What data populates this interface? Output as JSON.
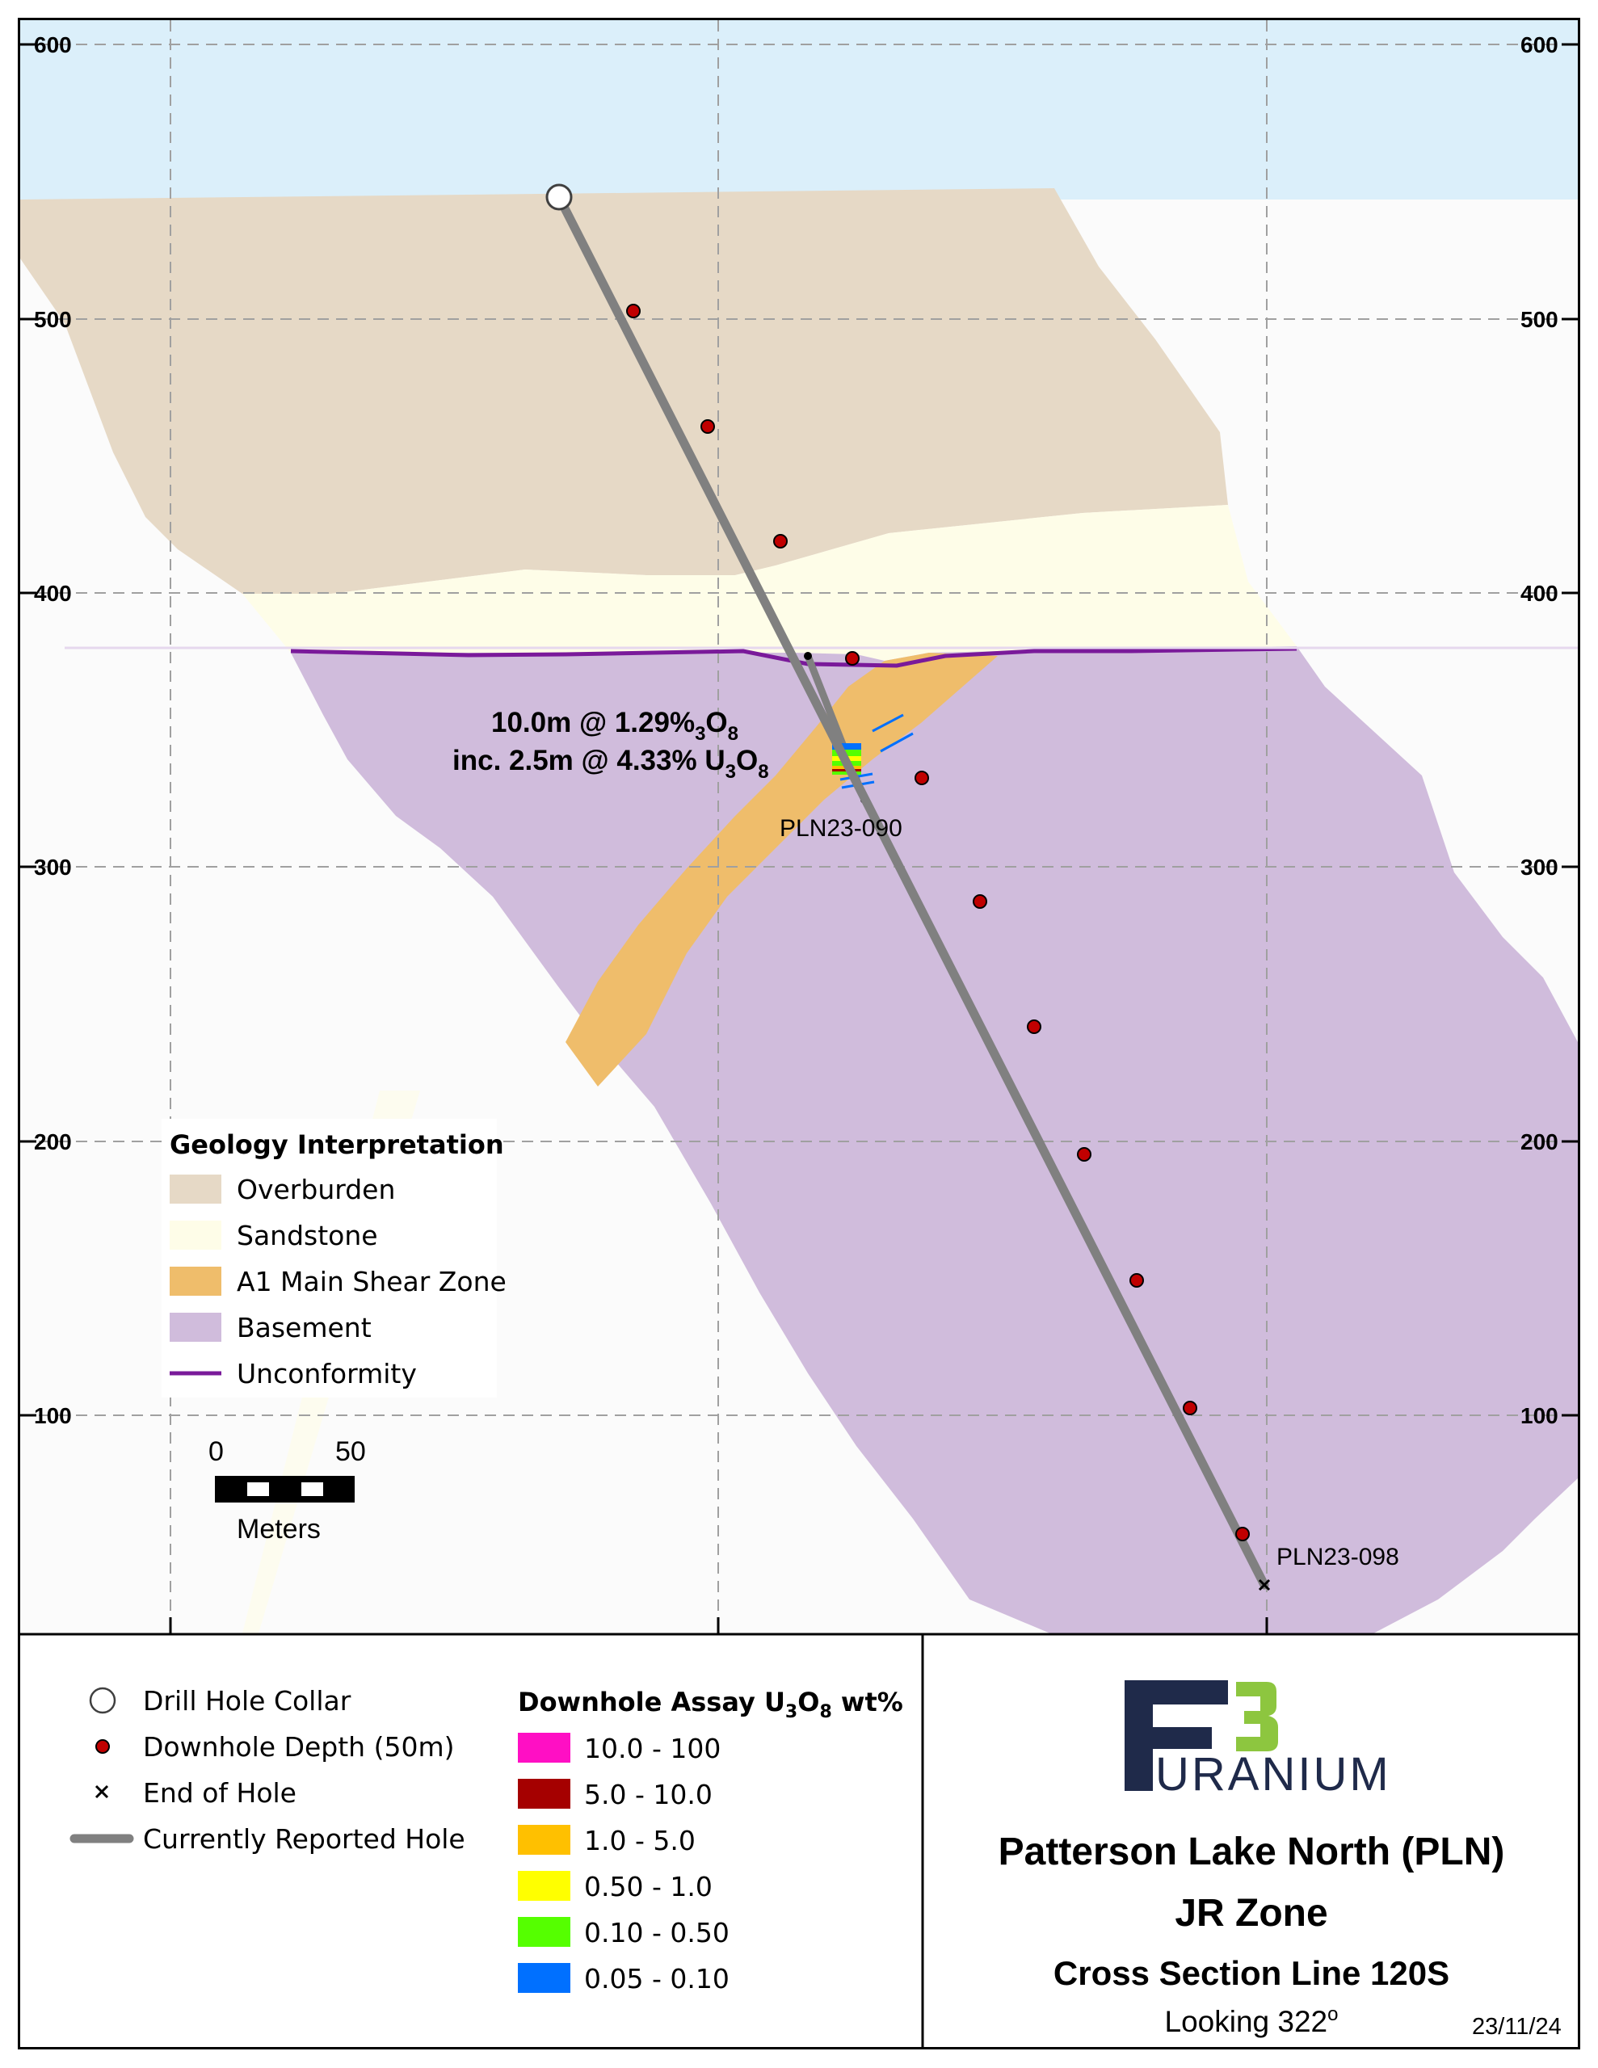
{
  "chart_data": {
    "type": "cross-section",
    "y_axis": {
      "ticks": [
        "600",
        "500",
        "400",
        "300",
        "200",
        "100"
      ]
    },
    "geology_legend": {
      "title": "Geology Interpretation",
      "items": [
        {
          "label": "Overburden",
          "color": "#e6d9c6"
        },
        {
          "label": "Sandstone",
          "color": "#fefde8"
        },
        {
          "label": "A1 Main Shear Zone",
          "color": "#efbd6b"
        },
        {
          "label": "Basement",
          "color": "#d0bcdc"
        },
        {
          "label": "Unconformity",
          "color": "#7a1a9a",
          "kind": "line"
        }
      ]
    },
    "annotation": {
      "line1": {
        "a": "10.0m @ 1.29%",
        "sub": "3",
        "b": "O",
        "sub2": "8"
      },
      "line2": {
        "a": "inc. 2.5m @ 4.33% U",
        "sub": "3",
        "b": "O",
        "sub2": "8"
      }
    },
    "holes": [
      {
        "label": "PLN23-090"
      },
      {
        "label": "PLN23-098"
      }
    ],
    "scale_bar": {
      "min": "0",
      "max": "50",
      "unit": "Meters"
    }
  },
  "symbol_legend": {
    "items": [
      {
        "label": "Drill Hole Collar",
        "icon": "collar-circle-icon"
      },
      {
        "label": "Downhole Depth (50m)",
        "icon": "depth-dot-icon"
      },
      {
        "label": "End of Hole",
        "icon": "x-icon"
      },
      {
        "label": "Currently Reported Hole",
        "icon": "hole-line-icon"
      }
    ]
  },
  "assay_legend": {
    "title_a": "Downhole Assay U",
    "title_sub1": "3",
    "title_b": "O",
    "title_sub2": "8",
    "title_c": " wt%",
    "items": [
      {
        "label": "10.0 - 100",
        "color": "#ff0fc4"
      },
      {
        "label": "5.0 - 10.0",
        "color": "#a50000"
      },
      {
        "label": "1.0 - 5.0",
        "color": "#ffc000"
      },
      {
        "label": "0.50 - 1.0",
        "color": "#ffff00"
      },
      {
        "label": "0.10 - 0.50",
        "color": "#55ff00"
      },
      {
        "label": "0.05 - 0.10",
        "color": "#0070ff"
      }
    ]
  },
  "logo": {
    "text": "URANIUM",
    "brand_dark": "#1f2a4a",
    "brand_green": "#8dc63f"
  },
  "title_block": {
    "title": "Patterson Lake North (PLN)",
    "zone": "JR Zone",
    "section": "Cross Section Line 120S",
    "looking_prefix": "Looking 322",
    "looking_sup": "o",
    "date": "23/11/24"
  }
}
